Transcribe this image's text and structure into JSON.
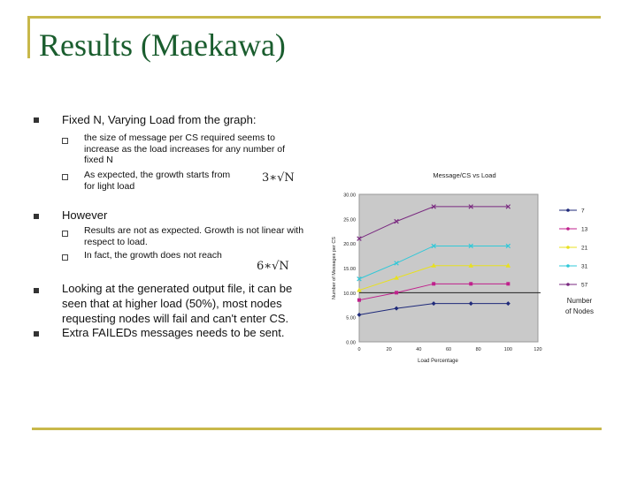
{
  "slide": {
    "title": "Results (Maekawa)",
    "bullets": [
      {
        "text": "Fixed N, Varying Load from the graph:"
      },
      {
        "text": "However"
      },
      {
        "text": "Looking at the generated output file, it can be seen that at higher load (50%), most nodes requesting nodes will fail and can't enter CS."
      },
      {
        "text": "Extra FAILEDs messages needs to be sent."
      }
    ],
    "sub1": [
      "the size of message per CS required  seems to increase as the load increases for any number of fixed N",
      "As expected, the growth starts from for light load"
    ],
    "sub2": [
      "Results are not as expected. Growth is not linear with respect to load.",
      "In fact, the growth does not reach"
    ],
    "formula1": "3∗√N",
    "formula2": "6∗√N"
  },
  "chart_data": {
    "type": "line",
    "title": "Message/CS vs Load",
    "xlabel": "Load Percentage",
    "ylabel": "Number of Messages per CS",
    "xlim": [
      0,
      120
    ],
    "ylim": [
      0,
      30
    ],
    "xticks": [
      "0",
      "20",
      "40",
      "60",
      "80",
      "100",
      "120"
    ],
    "yticks": [
      "0.00",
      "5.00",
      "10.00",
      "15.00",
      "20.00",
      "25.00",
      "30.00"
    ],
    "legend_title": "Number of Nodes",
    "legend_position": "right",
    "grid": false,
    "series": [
      {
        "name": "7",
        "color": "#1f2a7a",
        "x": [
          0,
          25,
          50,
          75,
          100
        ],
        "values": [
          5.5,
          6.8,
          7.8,
          7.8,
          7.8
        ]
      },
      {
        "name": "13",
        "color": "#c0208c",
        "x": [
          0,
          25,
          50,
          75,
          100
        ],
        "values": [
          8.5,
          10.0,
          11.8,
          11.8,
          11.8
        ]
      },
      {
        "name": "21",
        "color": "#e8e020",
        "x": [
          0,
          25,
          50,
          75,
          100
        ],
        "values": [
          10.5,
          13.0,
          15.5,
          15.5,
          15.5
        ]
      },
      {
        "name": "31",
        "color": "#30c8d8",
        "x": [
          0,
          25,
          50,
          75,
          100
        ],
        "values": [
          12.8,
          16.0,
          19.5,
          19.5,
          19.5
        ]
      },
      {
        "name": "57",
        "color": "#7a2a80",
        "x": [
          0,
          25,
          50,
          75,
          100
        ],
        "values": [
          21.0,
          24.5,
          27.5,
          27.5,
          27.5
        ]
      }
    ]
  }
}
